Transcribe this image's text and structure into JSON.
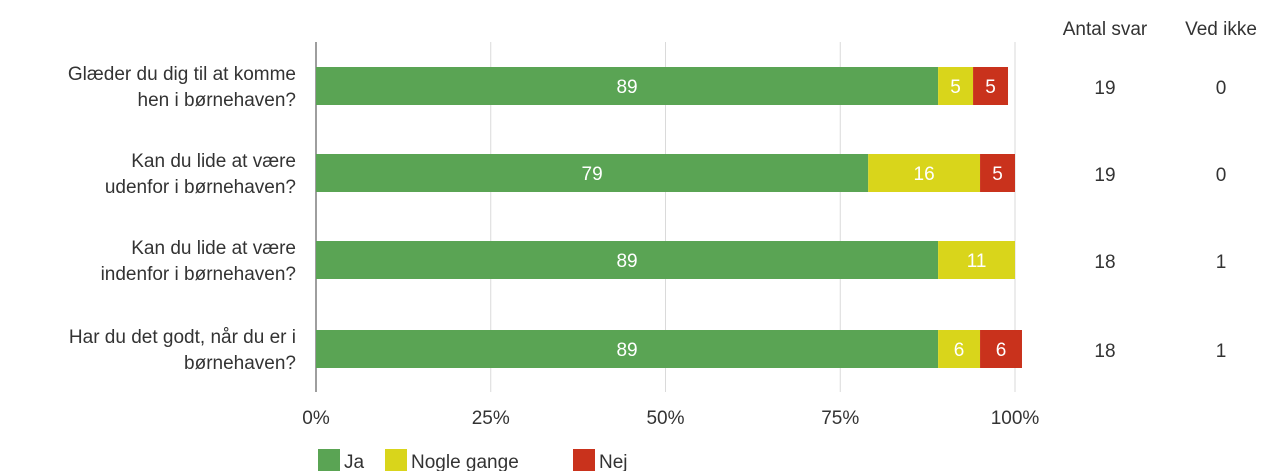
{
  "chart_data": {
    "type": "bar",
    "orientation": "horizontal",
    "stacked": true,
    "categories": [
      [
        "Glæder du dig til at komme",
        "hen i børnehaven?"
      ],
      [
        "Kan du lide at være",
        "udenfor i børnehaven?"
      ],
      [
        "Kan du lide at være",
        "indenfor i børnehaven?"
      ],
      [
        "Har du det godt, når du er i",
        "børnehaven?"
      ]
    ],
    "series": [
      {
        "name": "Ja",
        "color": "#5aa454",
        "values": [
          89,
          79,
          89,
          89
        ],
        "labels": [
          "89",
          "79",
          "89",
          "89"
        ]
      },
      {
        "name": "Nogle gange",
        "color": "#d9d51b",
        "values": [
          5,
          16,
          11,
          6
        ],
        "labels": [
          "5",
          "16",
          "11",
          "6"
        ]
      },
      {
        "name": "Nej",
        "color": "#c9321c",
        "values": [
          5,
          5,
          0,
          6
        ],
        "labels": [
          "5",
          "5",
          "",
          "6"
        ]
      }
    ],
    "xlim": [
      0,
      100
    ],
    "xticks": [
      "0%",
      "25%",
      "50%",
      "75%",
      "100%"
    ],
    "grid": true,
    "legend": "bottom-left"
  },
  "side_table": {
    "headers": [
      "Antal svar",
      "Ved ikke"
    ],
    "rows": [
      [
        "19",
        "0"
      ],
      [
        "19",
        "0"
      ],
      [
        "18",
        "1"
      ],
      [
        "18",
        "1"
      ]
    ]
  }
}
